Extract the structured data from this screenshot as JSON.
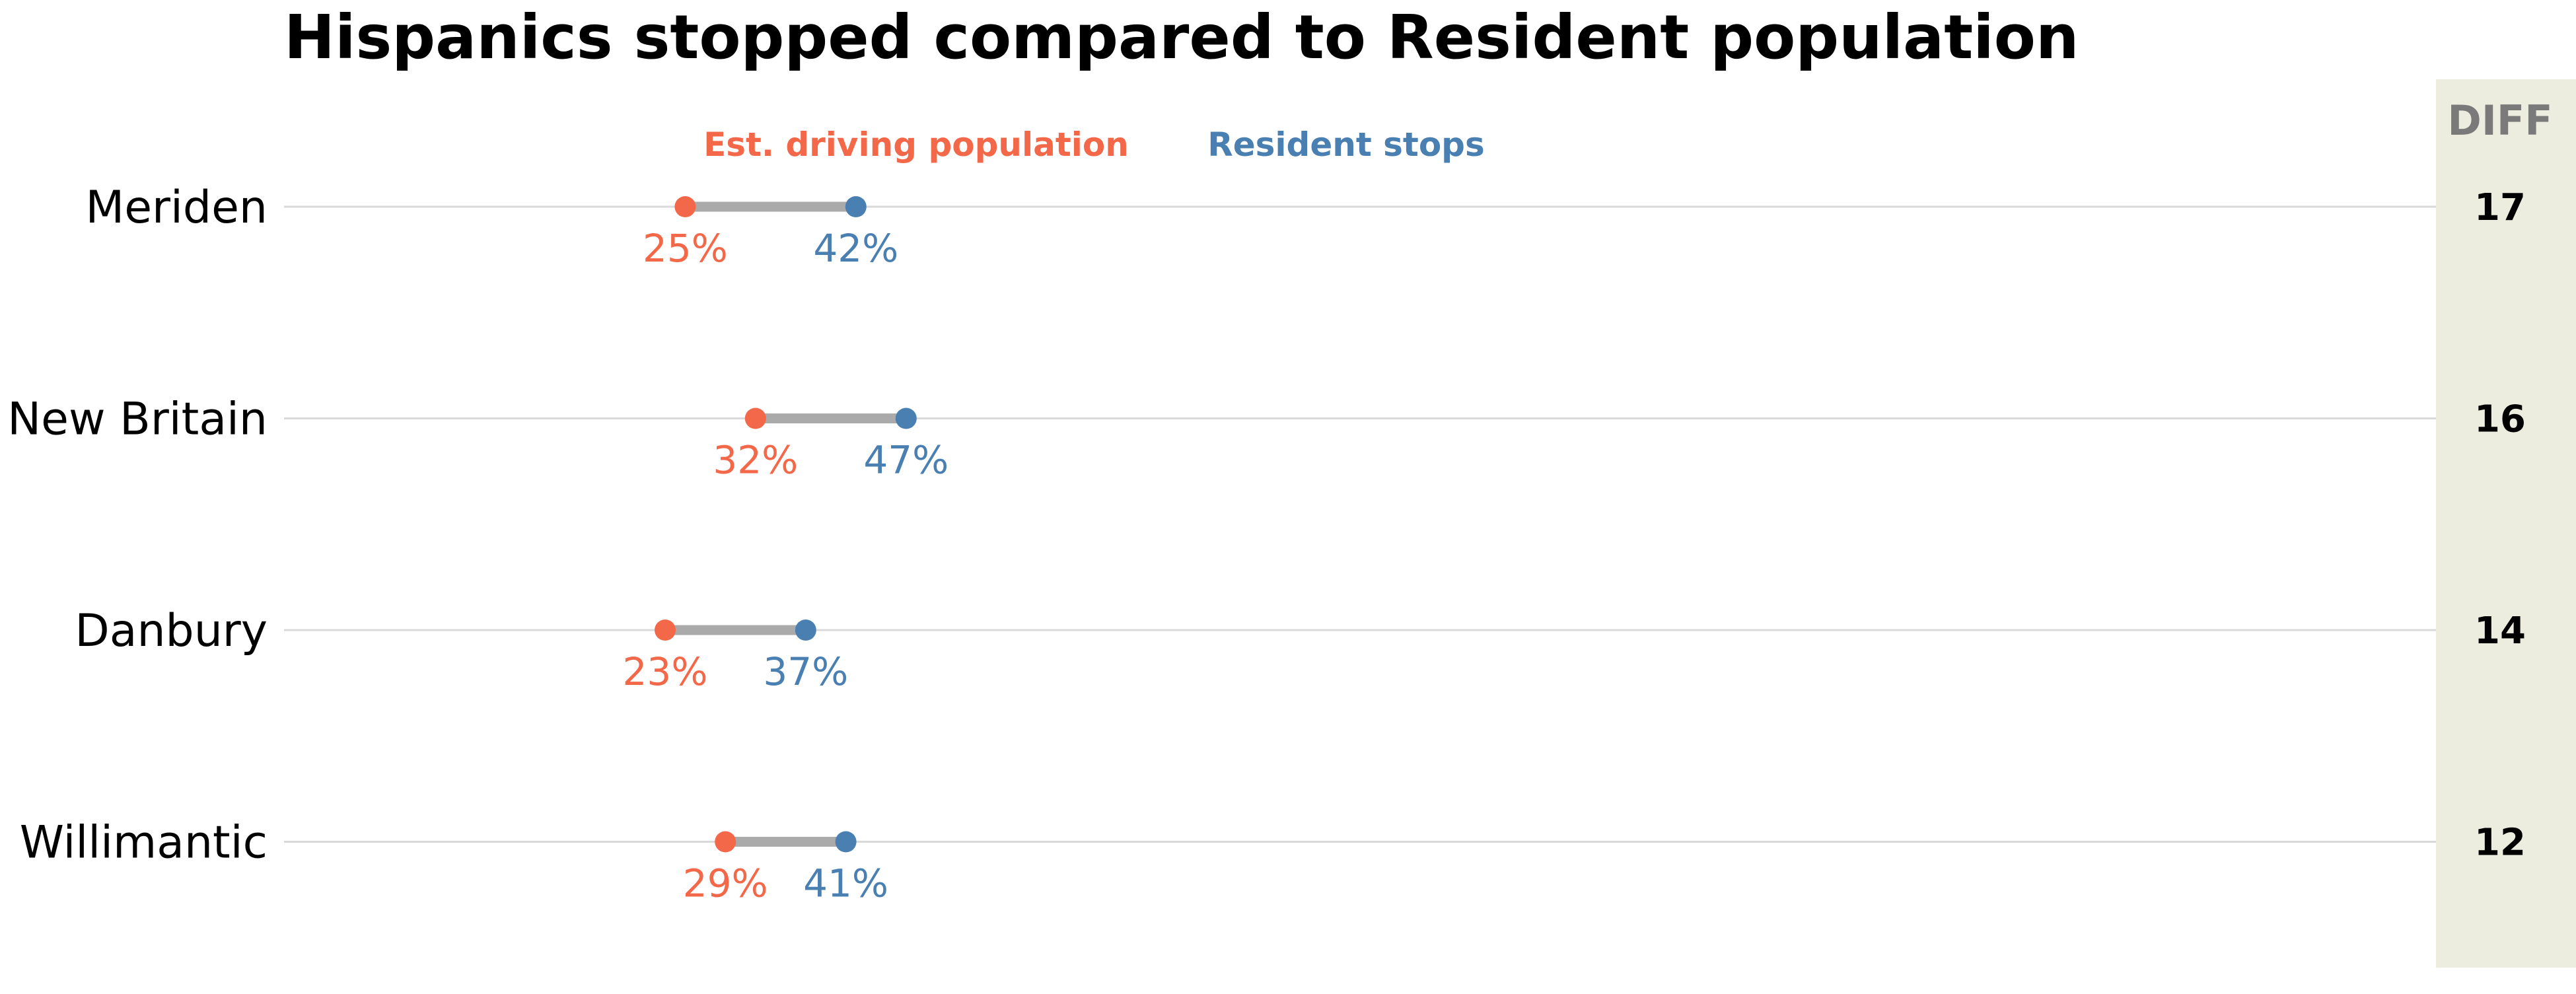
{
  "chart_data": {
    "type": "dumbbell",
    "title": "Hispanics stopped compared to Resident population",
    "categories": [
      "Meriden",
      "New Britain",
      "Danbury",
      "Willimantic"
    ],
    "series": [
      {
        "name": "Est. driving population",
        "color": "#f4684a",
        "values": [
          25,
          32,
          23,
          29
        ],
        "labels": [
          "25%",
          "32%",
          "23%",
          "29%"
        ]
      },
      {
        "name": "Resident stops",
        "color": "#4a7fb1",
        "values": [
          42,
          47,
          37,
          41
        ],
        "labels": [
          "42%",
          "47%",
          "37%",
          "41%"
        ]
      }
    ],
    "diff": {
      "header": "DIFF",
      "values": [
        "17",
        "16",
        "14",
        "12"
      ]
    },
    "x_unit": "percent",
    "xlim": [
      0,
      85
    ],
    "grid": "horizontal gridline per category",
    "legend_placement": "top, above first row",
    "colors": {
      "connector": "#aaaaaa",
      "gridline": "#d9d9d9",
      "diff_panel": "#ededdf"
    }
  }
}
